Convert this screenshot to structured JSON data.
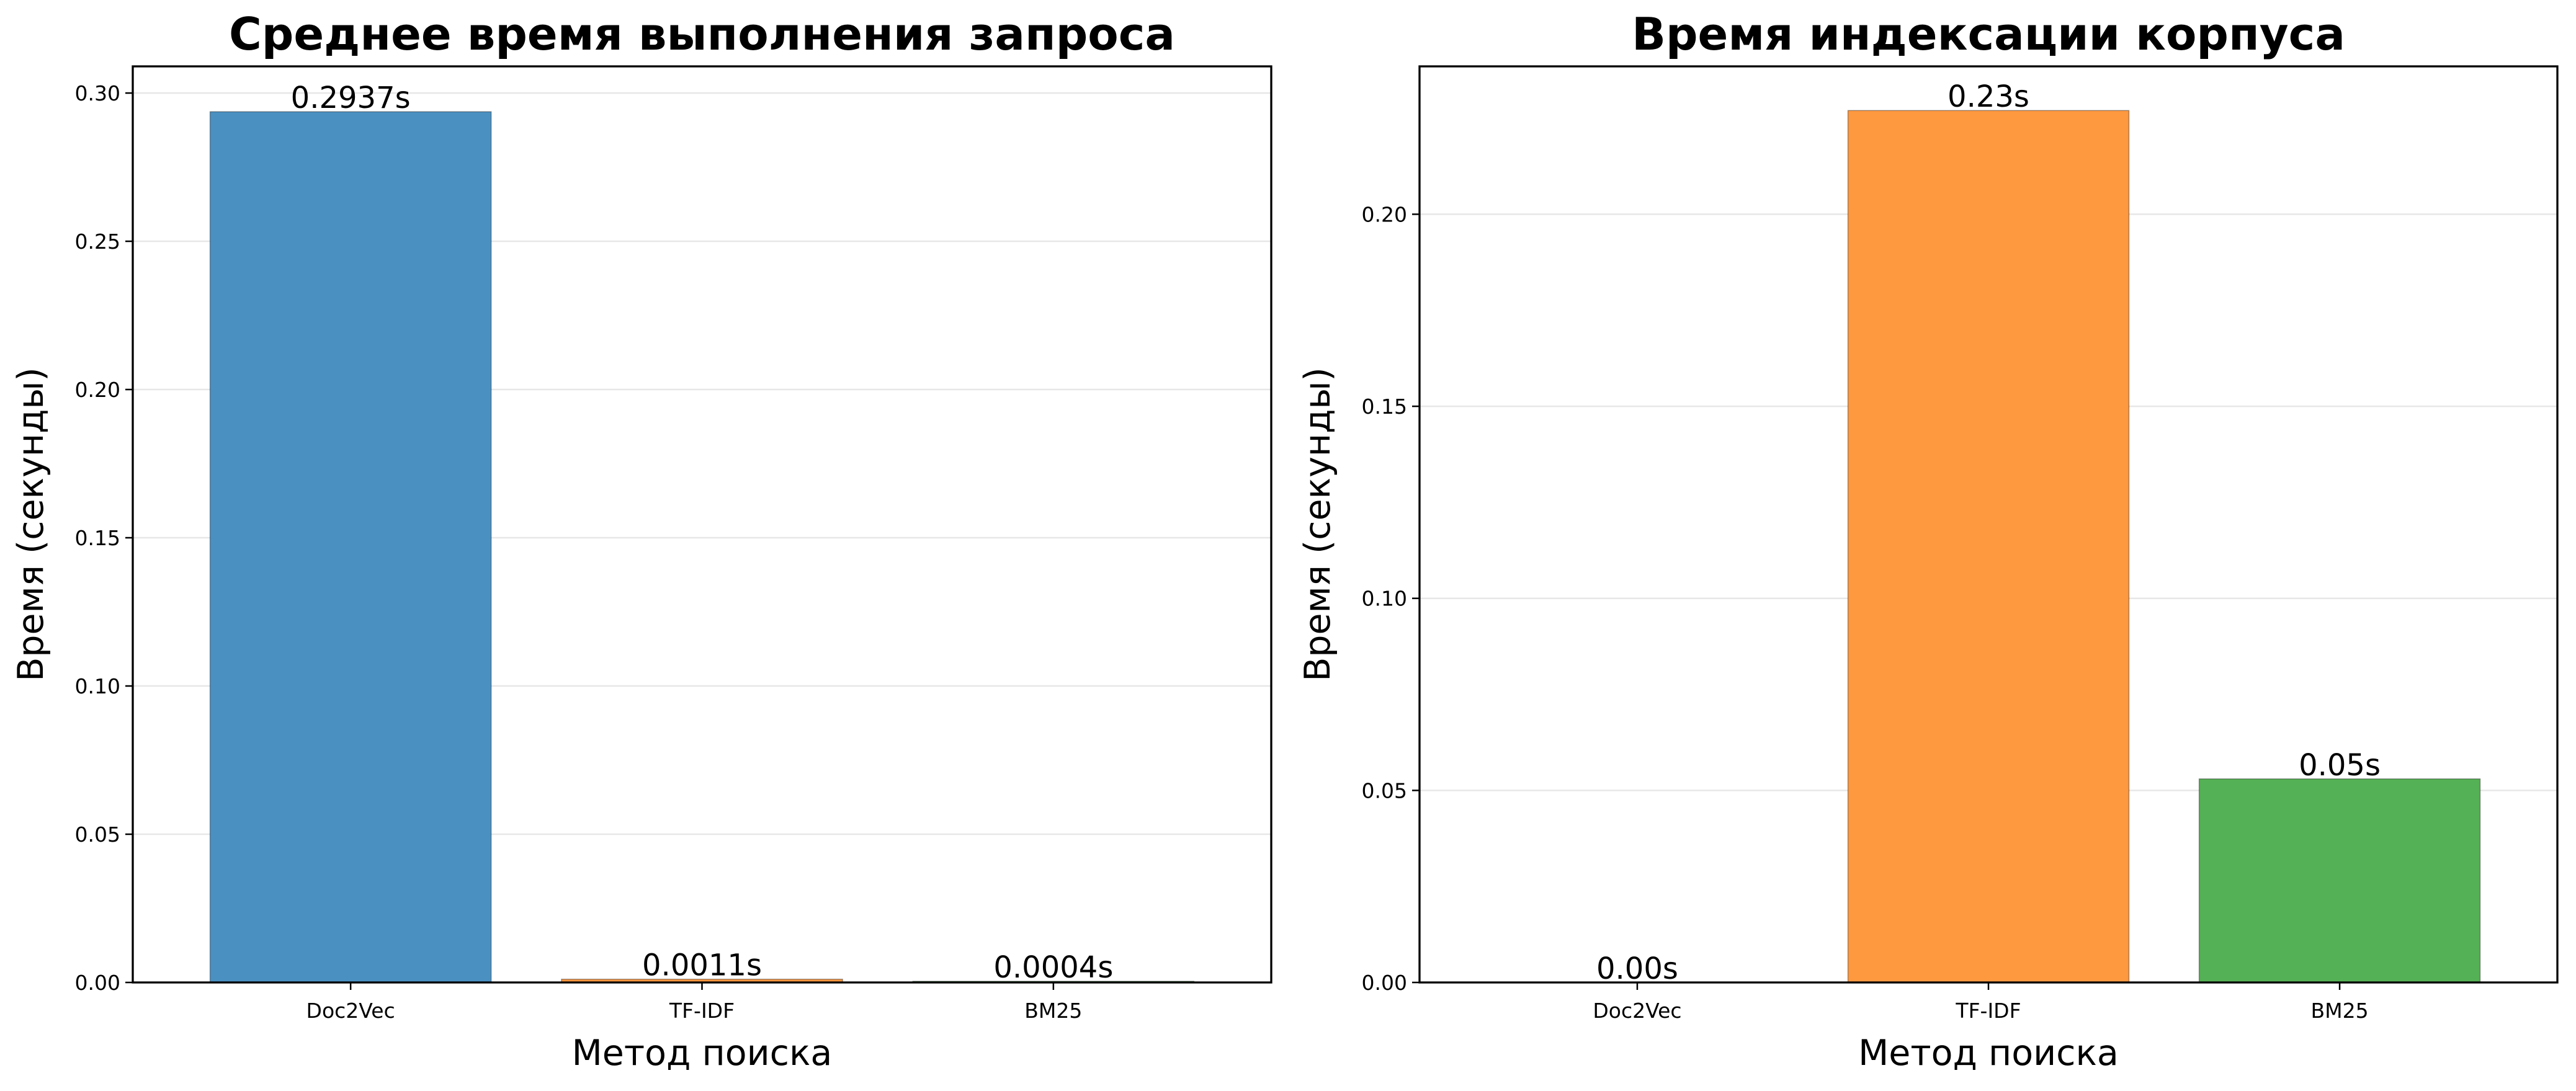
{
  "chart_data": [
    {
      "type": "bar",
      "title": "Среднее время выполнения запроса",
      "xlabel": "Метод поиска",
      "ylabel": "Время (секунды)",
      "categories": [
        "Doc2Vec",
        "TF-IDF",
        "BM25"
      ],
      "values": [
        0.2937,
        0.0011,
        0.0004
      ],
      "value_labels": [
        "0.2937s",
        "0.0011s",
        "0.0004s"
      ],
      "colors": [
        "#4A91C2",
        "#FF9940",
        "#55B155"
      ],
      "ylim": [
        0,
        0.309
      ],
      "yticks": [
        0.0,
        0.05,
        0.1,
        0.15,
        0.2,
        0.25,
        0.3
      ],
      "ytick_labels": [
        "0.00",
        "0.05",
        "0.10",
        "0.15",
        "0.20",
        "0.25",
        "0.30"
      ],
      "grid": "y"
    },
    {
      "type": "bar",
      "title": "Время индексации корпуса",
      "xlabel": "Метод поиска",
      "ylabel": "Время (секунды)",
      "categories": [
        "Doc2Vec",
        "TF-IDF",
        "BM25"
      ],
      "values": [
        0.0,
        0.227,
        0.053
      ],
      "value_labels": [
        "0.00s",
        "0.23s",
        "0.05s"
      ],
      "colors": [
        "#4A91C2",
        "#FF9940",
        "#55B155"
      ],
      "ylim": [
        0,
        0.2385
      ],
      "yticks": [
        0.0,
        0.05,
        0.1,
        0.15,
        0.2
      ],
      "ytick_labels": [
        "0.00",
        "0.05",
        "0.10",
        "0.15",
        "0.20"
      ],
      "grid": "y"
    }
  ]
}
